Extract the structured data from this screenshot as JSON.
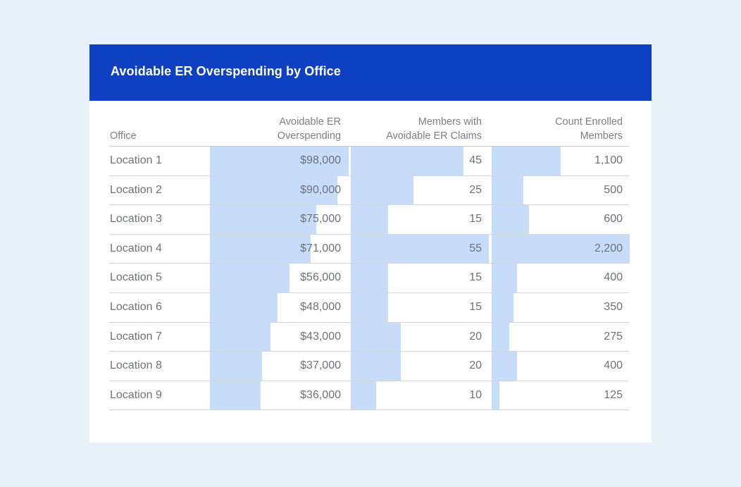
{
  "header": {
    "title": "Avoidable ER Overspending by Office"
  },
  "chart_data": {
    "type": "table",
    "title": "Avoidable ER Overspending by Office",
    "columns": [
      {
        "key": "office",
        "label_lines": [
          "Office"
        ]
      },
      {
        "key": "overspending",
        "label_lines": [
          "Avoidable ER",
          "Overspending"
        ],
        "max": 98000
      },
      {
        "key": "members",
        "label_lines": [
          "Members with",
          "Avoidable ER Claims"
        ],
        "max": 55
      },
      {
        "key": "enrolled",
        "label_lines": [
          "Count Enrolled",
          "Members"
        ],
        "max": 2200
      }
    ],
    "rows": [
      {
        "office": "Location 1",
        "overspending": 98000,
        "overspending_label": "$98,000",
        "members": 45,
        "members_label": "45",
        "enrolled": 1100,
        "enrolled_label": "1,100"
      },
      {
        "office": "Location 2",
        "overspending": 90000,
        "overspending_label": "$90,000",
        "members": 25,
        "members_label": "25",
        "enrolled": 500,
        "enrolled_label": "500"
      },
      {
        "office": "Location 3",
        "overspending": 75000,
        "overspending_label": "$75,000",
        "members": 15,
        "members_label": "15",
        "enrolled": 600,
        "enrolled_label": "600"
      },
      {
        "office": "Location 4",
        "overspending": 71000,
        "overspending_label": "$71,000",
        "members": 55,
        "members_label": "55",
        "enrolled": 2200,
        "enrolled_label": "2,200"
      },
      {
        "office": "Location 5",
        "overspending": 56000,
        "overspending_label": "$56,000",
        "members": 15,
        "members_label": "15",
        "enrolled": 400,
        "enrolled_label": "400"
      },
      {
        "office": "Location 6",
        "overspending": 48000,
        "overspending_label": "$48,000",
        "members": 15,
        "members_label": "15",
        "enrolled": 350,
        "enrolled_label": "350"
      },
      {
        "office": "Location 7",
        "overspending": 43000,
        "overspending_label": "$43,000",
        "members": 20,
        "members_label": "20",
        "enrolled": 275,
        "enrolled_label": "275"
      },
      {
        "office": "Location 8",
        "overspending": 37000,
        "overspending_label": "$37,000",
        "members": 20,
        "members_label": "20",
        "enrolled": 400,
        "enrolled_label": "400"
      },
      {
        "office": "Location 9",
        "overspending": 36000,
        "overspending_label": "$36,000",
        "members": 10,
        "members_label": "10",
        "enrolled": 125,
        "enrolled_label": "125"
      }
    ]
  },
  "colors": {
    "header_bg": "#0d41c2",
    "bar": "#c6dcf9",
    "page_bg": "#e8f1f9"
  }
}
